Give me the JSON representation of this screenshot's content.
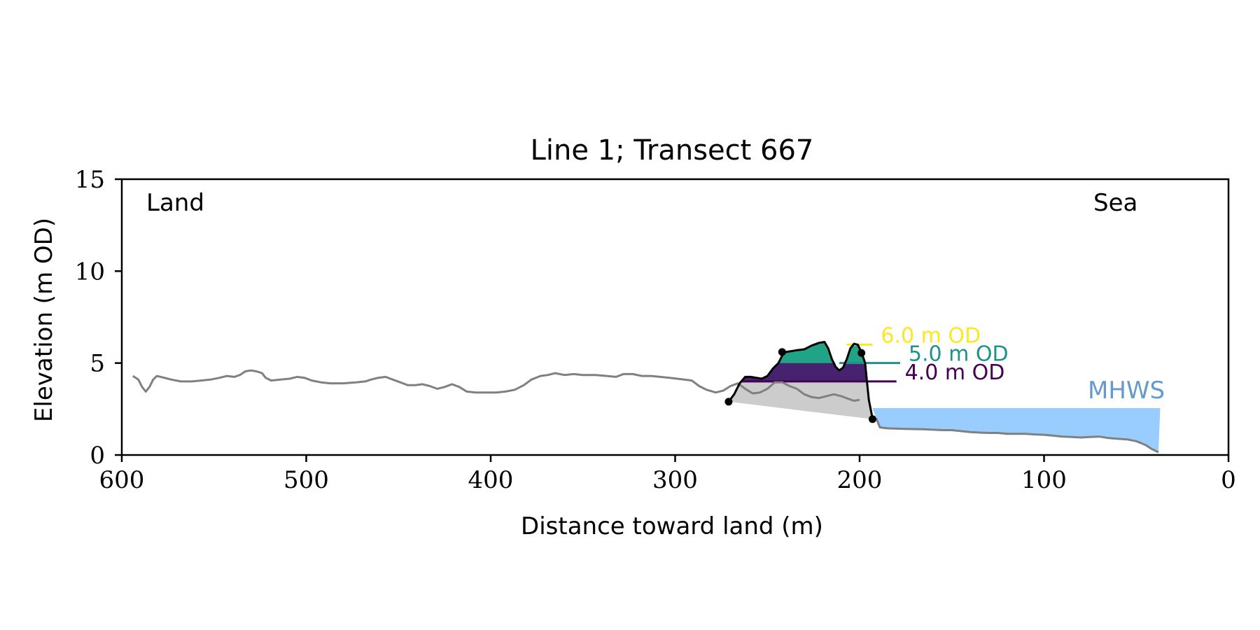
{
  "chart_data": {
    "type": "line",
    "title": "Line 1; Transect 667",
    "xlabel": "Distance toward land (m)",
    "ylabel": "Elevation (m OD)",
    "xlim": [
      600,
      0
    ],
    "ylim": [
      0,
      15
    ],
    "x_ticks": [
      600,
      500,
      400,
      300,
      200,
      100,
      0
    ],
    "y_ticks": [
      0,
      5,
      10,
      15
    ],
    "grid": false,
    "legend": "none",
    "annotations": {
      "land": "Land",
      "sea": "Sea"
    },
    "colors": {
      "profile": "#808080",
      "dune_outline": "#000000",
      "below_toe_fill": "#cccccc",
      "water": "#99ccff",
      "mhws_label": "#6699cc"
    },
    "series": [
      {
        "type": "line",
        "points": [
          [
            594,
            4.3
          ],
          [
            591,
            4.1
          ],
          [
            589,
            3.7
          ],
          [
            587,
            3.45
          ],
          [
            585,
            3.7
          ],
          [
            583,
            4.1
          ],
          [
            581,
            4.3
          ],
          [
            577,
            4.2
          ],
          [
            573,
            4.1
          ],
          [
            568,
            4.0
          ],
          [
            562,
            4.0
          ],
          [
            557,
            4.05
          ],
          [
            552,
            4.1
          ],
          [
            547,
            4.2
          ],
          [
            543,
            4.3
          ],
          [
            539,
            4.25
          ],
          [
            536,
            4.35
          ],
          [
            533,
            4.55
          ],
          [
            530,
            4.6
          ],
          [
            527,
            4.55
          ],
          [
            524,
            4.45
          ],
          [
            522,
            4.2
          ],
          [
            519,
            4.05
          ],
          [
            514,
            4.1
          ],
          [
            509,
            4.15
          ],
          [
            505,
            4.25
          ],
          [
            501,
            4.2
          ],
          [
            497,
            4.05
          ],
          [
            492,
            3.95
          ],
          [
            487,
            3.9
          ],
          [
            480,
            3.9
          ],
          [
            473,
            3.95
          ],
          [
            468,
            4.0
          ],
          [
            465,
            4.1
          ],
          [
            461,
            4.2
          ],
          [
            457,
            4.25
          ],
          [
            453,
            4.1
          ],
          [
            449,
            3.95
          ],
          [
            445,
            3.8
          ],
          [
            441,
            3.8
          ],
          [
            437,
            3.85
          ],
          [
            433,
            3.75
          ],
          [
            429,
            3.6
          ],
          [
            425,
            3.7
          ],
          [
            421,
            3.85
          ],
          [
            417,
            3.7
          ],
          [
            413,
            3.45
          ],
          [
            408,
            3.4
          ],
          [
            402,
            3.4
          ],
          [
            397,
            3.4
          ],
          [
            392,
            3.45
          ],
          [
            387,
            3.55
          ],
          [
            382,
            3.8
          ],
          [
            378,
            4.1
          ],
          [
            373,
            4.3
          ],
          [
            369,
            4.35
          ],
          [
            365,
            4.45
          ],
          [
            360,
            4.35
          ],
          [
            355,
            4.4
          ],
          [
            350,
            4.35
          ],
          [
            343,
            4.35
          ],
          [
            337,
            4.3
          ],
          [
            332,
            4.25
          ],
          [
            328,
            4.4
          ],
          [
            323,
            4.4
          ],
          [
            318,
            4.3
          ],
          [
            313,
            4.3
          ],
          [
            308,
            4.25
          ],
          [
            303,
            4.2
          ],
          [
            299,
            4.15
          ],
          [
            295,
            4.1
          ],
          [
            291,
            4.05
          ],
          [
            287,
            3.75
          ],
          [
            283,
            3.55
          ],
          [
            278,
            3.4
          ],
          [
            274,
            3.5
          ],
          [
            270,
            3.75
          ],
          [
            266,
            3.9
          ],
          [
            262,
            3.6
          ],
          [
            258,
            3.35
          ],
          [
            254,
            3.4
          ],
          [
            250,
            3.6
          ],
          [
            246,
            3.95
          ],
          [
            242,
            3.95
          ],
          [
            238,
            3.75
          ],
          [
            234,
            3.6
          ],
          [
            230,
            3.3
          ],
          [
            226,
            3.15
          ],
          [
            222,
            3.1
          ],
          [
            218,
            3.2
          ],
          [
            214,
            3.3
          ],
          [
            210,
            3.2
          ],
          [
            206,
            3.05
          ],
          [
            203,
            2.95
          ],
          [
            200,
            3.0
          ]
        ]
      },
      {
        "type": "line",
        "points": [
          [
            191,
            2.0
          ],
          [
            189,
            1.5
          ],
          [
            185,
            1.45
          ],
          [
            175,
            1.42
          ],
          [
            165,
            1.4
          ],
          [
            155,
            1.35
          ],
          [
            150,
            1.35
          ],
          [
            145,
            1.3
          ],
          [
            140,
            1.25
          ],
          [
            135,
            1.22
          ],
          [
            130,
            1.2
          ],
          [
            125,
            1.2
          ],
          [
            120,
            1.15
          ],
          [
            115,
            1.15
          ],
          [
            110,
            1.15
          ],
          [
            105,
            1.12
          ],
          [
            100,
            1.1
          ],
          [
            95,
            1.05
          ],
          [
            90,
            1.0
          ],
          [
            85,
            0.98
          ],
          [
            80,
            0.95
          ],
          [
            75,
            0.98
          ],
          [
            70,
            1.0
          ],
          [
            65,
            0.92
          ],
          [
            60,
            0.88
          ],
          [
            55,
            0.85
          ],
          [
            50,
            0.75
          ],
          [
            45,
            0.55
          ],
          [
            42,
            0.35
          ],
          [
            38,
            0.15
          ]
        ]
      },
      {
        "type": "line",
        "points": [
          [
            271,
            2.9
          ],
          [
            268,
            3.3
          ],
          [
            265,
            3.9
          ],
          [
            262,
            4.25
          ],
          [
            259,
            4.25
          ],
          [
            256,
            4.2
          ],
          [
            253,
            4.15
          ],
          [
            250,
            4.3
          ],
          [
            247,
            4.7
          ],
          [
            244,
            5.0
          ],
          [
            242,
            5.4
          ],
          [
            240,
            5.6
          ],
          [
            237,
            5.65
          ],
          [
            234,
            5.7
          ],
          [
            230,
            5.75
          ],
          [
            226,
            5.95
          ],
          [
            222,
            6.1
          ],
          [
            219,
            6.15
          ],
          [
            217,
            5.8
          ],
          [
            215,
            5.2
          ],
          [
            213,
            4.8
          ],
          [
            211,
            4.6
          ],
          [
            209,
            4.75
          ],
          [
            207,
            5.2
          ],
          [
            205,
            5.8
          ],
          [
            203,
            6.05
          ],
          [
            201,
            6.0
          ],
          [
            199,
            5.6
          ],
          [
            197,
            5.0
          ],
          [
            196,
            4.0
          ],
          [
            195,
            3.0
          ],
          [
            193,
            2.0
          ]
        ]
      },
      {
        "type": "scatter",
        "points": [
          [
            271,
            2.9
          ],
          [
            242,
            5.6
          ],
          [
            199,
            5.55
          ],
          [
            193,
            1.95
          ]
        ]
      }
    ],
    "contours": [
      {
        "level": 6.0,
        "label": "6.0 m OD",
        "color": "#fde725"
      },
      {
        "level": 5.0,
        "label": "5.0 m OD",
        "color": "#21918c"
      },
      {
        "level": 4.0,
        "label": "4.0 m OD",
        "color": "#440154"
      }
    ],
    "fill_volumes": [
      {
        "level": 4.0,
        "color": "#46226f"
      },
      {
        "level": 5.0,
        "color": "#20a386"
      }
    ],
    "below_toe_polygon": [
      [
        271,
        2.9
      ],
      [
        193,
        1.95
      ]
    ],
    "mhws": {
      "label": "MHWS",
      "level": 2.55,
      "x_start": 193,
      "x_end": 37
    }
  }
}
